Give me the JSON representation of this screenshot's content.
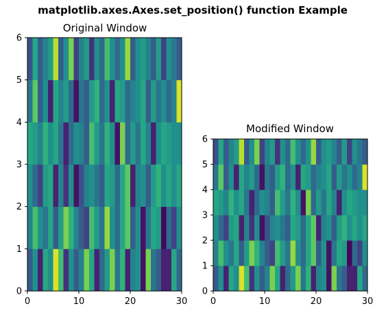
{
  "figure_title": "matplotlib.axes.Axes.set_position() function Example",
  "chart_data": [
    {
      "type": "heatmap",
      "title": "Original Window",
      "xlabel": "",
      "ylabel": "",
      "xlim": [
        0,
        30
      ],
      "ylim": [
        0,
        6
      ],
      "xticks": [
        "0",
        "10",
        "20",
        "30"
      ],
      "yticks": [
        "0",
        "1",
        "2",
        "3",
        "4",
        "5",
        "6"
      ],
      "grid": false,
      "colormap": "viridis",
      "rows": [
        [
          0.3,
          0.5,
          0.1,
          0.6,
          0.5,
          0.95,
          0.7,
          0.15,
          0.5,
          0.3,
          0.45,
          0.8,
          0.6,
          0.1,
          0.35,
          0.55,
          0.8,
          0.4,
          0.65,
          0.1,
          0.45,
          0.5,
          0.05,
          0.8,
          0.4,
          0.3,
          0.1,
          0.1,
          0.6,
          0.35
        ],
        [
          0.45,
          0.7,
          0.5,
          0.4,
          0.6,
          0.3,
          0.55,
          0.8,
          0.65,
          0.45,
          0.3,
          0.2,
          0.7,
          0.55,
          0.4,
          0.85,
          0.5,
          0.35,
          0.6,
          0.75,
          0.3,
          0.5,
          0.05,
          0.4,
          0.6,
          0.55,
          0.02,
          0.35,
          0.2,
          0.5
        ],
        [
          0.5,
          0.35,
          0.2,
          0.55,
          0.6,
          0.1,
          0.45,
          0.15,
          0.5,
          0.05,
          0.25,
          0.45,
          0.5,
          0.4,
          0.3,
          0.6,
          0.55,
          0.35,
          0.6,
          0.75,
          0.1,
          0.45,
          0.5,
          0.3,
          0.55,
          0.65,
          0.5,
          0.6,
          0.5,
          0.6
        ],
        [
          0.6,
          0.55,
          0.45,
          0.65,
          0.5,
          0.6,
          0.4,
          0.1,
          0.35,
          0.5,
          0.45,
          0.3,
          0.7,
          0.55,
          0.4,
          0.65,
          0.5,
          0.05,
          0.8,
          0.35,
          0.55,
          0.4,
          0.6,
          0.45,
          0.1,
          0.5,
          0.6,
          0.55,
          0.5,
          0.5
        ],
        [
          0.4,
          0.75,
          0.3,
          0.5,
          0.1,
          0.6,
          0.45,
          0.55,
          0.35,
          0.05,
          0.4,
          0.3,
          0.55,
          0.65,
          0.35,
          0.5,
          0.1,
          0.6,
          0.55,
          0.35,
          0.45,
          0.5,
          0.6,
          0.3,
          0.55,
          0.4,
          0.5,
          0.35,
          0.45,
          0.95
        ],
        [
          0.25,
          0.6,
          0.3,
          0.45,
          0.55,
          0.9,
          0.3,
          0.5,
          0.8,
          0.2,
          0.45,
          0.55,
          0.15,
          0.5,
          0.35,
          0.7,
          0.5,
          0.35,
          0.5,
          0.85,
          0.3,
          0.5,
          0.55,
          0.45,
          0.3,
          0.55,
          0.2,
          0.5,
          0.4,
          0.3
        ]
      ]
    },
    {
      "type": "heatmap",
      "title": "Modified  Window",
      "xlabel": "",
      "ylabel": "",
      "xlim": [
        0,
        30
      ],
      "ylim": [
        0,
        6
      ],
      "xticks": [
        "0",
        "10",
        "20",
        "30"
      ],
      "yticks": [
        "0",
        "1",
        "2",
        "3",
        "4",
        "5",
        "6"
      ],
      "grid": false,
      "colormap": "viridis",
      "rows": [
        [
          0.3,
          0.5,
          0.1,
          0.6,
          0.5,
          0.95,
          0.7,
          0.15,
          0.5,
          0.3,
          0.45,
          0.8,
          0.6,
          0.1,
          0.35,
          0.55,
          0.8,
          0.4,
          0.65,
          0.1,
          0.45,
          0.5,
          0.05,
          0.8,
          0.4,
          0.3,
          0.1,
          0.1,
          0.6,
          0.35
        ],
        [
          0.45,
          0.7,
          0.5,
          0.4,
          0.6,
          0.3,
          0.55,
          0.8,
          0.65,
          0.45,
          0.3,
          0.2,
          0.7,
          0.55,
          0.4,
          0.85,
          0.5,
          0.35,
          0.6,
          0.75,
          0.3,
          0.5,
          0.05,
          0.4,
          0.6,
          0.55,
          0.02,
          0.35,
          0.2,
          0.5
        ],
        [
          0.5,
          0.35,
          0.2,
          0.55,
          0.6,
          0.1,
          0.45,
          0.15,
          0.5,
          0.05,
          0.25,
          0.45,
          0.5,
          0.4,
          0.3,
          0.6,
          0.55,
          0.35,
          0.6,
          0.75,
          0.1,
          0.45,
          0.5,
          0.3,
          0.55,
          0.65,
          0.5,
          0.6,
          0.5,
          0.6
        ],
        [
          0.6,
          0.55,
          0.45,
          0.65,
          0.5,
          0.6,
          0.4,
          0.1,
          0.35,
          0.5,
          0.45,
          0.3,
          0.7,
          0.55,
          0.4,
          0.65,
          0.5,
          0.05,
          0.8,
          0.35,
          0.55,
          0.4,
          0.6,
          0.45,
          0.1,
          0.5,
          0.6,
          0.55,
          0.5,
          0.5
        ],
        [
          0.4,
          0.75,
          0.3,
          0.5,
          0.1,
          0.6,
          0.45,
          0.55,
          0.35,
          0.05,
          0.4,
          0.3,
          0.55,
          0.65,
          0.35,
          0.5,
          0.1,
          0.6,
          0.55,
          0.35,
          0.45,
          0.5,
          0.6,
          0.3,
          0.55,
          0.4,
          0.5,
          0.35,
          0.45,
          0.95
        ],
        [
          0.25,
          0.6,
          0.3,
          0.45,
          0.55,
          0.9,
          0.3,
          0.5,
          0.8,
          0.2,
          0.45,
          0.55,
          0.15,
          0.5,
          0.35,
          0.7,
          0.5,
          0.35,
          0.5,
          0.85,
          0.3,
          0.5,
          0.55,
          0.45,
          0.3,
          0.55,
          0.2,
          0.5,
          0.4,
          0.3
        ]
      ]
    }
  ]
}
